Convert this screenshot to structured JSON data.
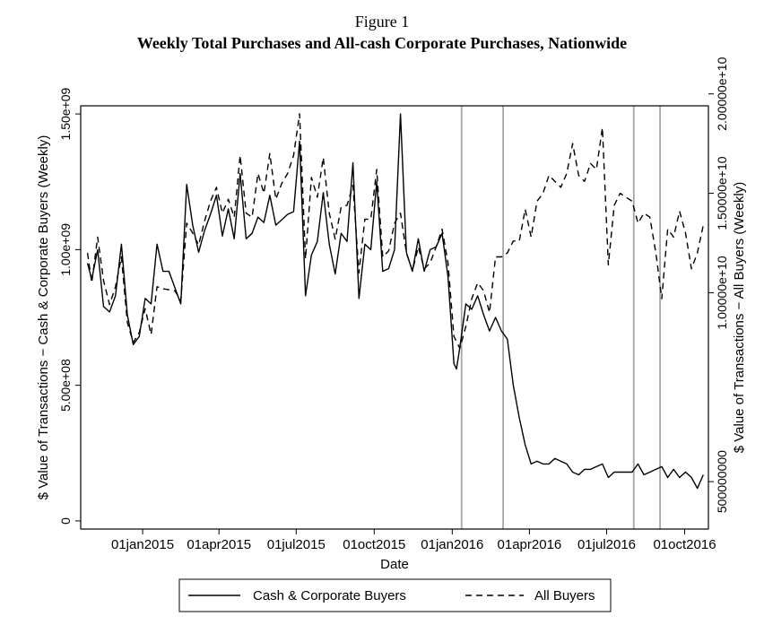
{
  "figure": {
    "label": "Figure 1",
    "title": "Weekly Total Purchases and All-cash Corporate Purchases, Nationwide"
  },
  "chart_data": {
    "type": "line",
    "xlabel": "Date",
    "ylabel_left": "$ Value of Transactions − Cash & Corporate Buyers (Weekly)",
    "ylabel_right": "$ Value of Transactions − All Buyers (Weekly)",
    "x_ticks": [
      "01jan2015",
      "01apr2015",
      "01jul2015",
      "01oct2015",
      "01jan2016",
      "01apr2016",
      "01jul2016",
      "01oct2016"
    ],
    "x_tick_dates": [
      "2015-01-01",
      "2015-04-01",
      "2015-07-01",
      "2015-10-01",
      "2016-01-01",
      "2016-04-01",
      "2016-07-01",
      "2016-10-01"
    ],
    "xlim": [
      "2014-10-20",
      "2016-10-29"
    ],
    "ylim_left": [
      -30000000,
      1530000000
    ],
    "ylim_right": [
      -1885714286,
      19400000000
    ],
    "y_ticks_left": [
      {
        "value": 0,
        "label": "0"
      },
      {
        "value": 500000000,
        "label": "5.00e+08"
      },
      {
        "value": 1000000000,
        "label": "1.00e+09"
      },
      {
        "value": 1500000000,
        "label": "1.50e+09"
      }
    ],
    "y_ticks_right": [
      {
        "value": 500000000,
        "label": "500000000"
      },
      {
        "value": 10000000000,
        "label": "1.00000e+10"
      },
      {
        "value": 15000000000,
        "label": "1.50000e+10"
      },
      {
        "value": 20000000000,
        "label": "2.00000e+10"
      }
    ],
    "vertical_lines": [
      "2016-01-12",
      "2016-03-01",
      "2016-08-02",
      "2016-09-02"
    ],
    "grid": false,
    "legend_position": "bottom",
    "series": [
      {
        "name": "Cash & Corporate Buyers",
        "axis": "left",
        "style": "solid",
        "points": [
          [
            "2014-10-28",
            950000000
          ],
          [
            "2014-11-02",
            890000000
          ],
          [
            "2014-11-09",
            1000000000
          ],
          [
            "2014-11-16",
            790000000
          ],
          [
            "2014-11-23",
            770000000
          ],
          [
            "2014-11-30",
            830000000
          ],
          [
            "2014-12-07",
            1020000000
          ],
          [
            "2014-12-14",
            760000000
          ],
          [
            "2014-12-21",
            650000000
          ],
          [
            "2014-12-28",
            680000000
          ],
          [
            "2015-01-04",
            820000000
          ],
          [
            "2015-01-11",
            800000000
          ],
          [
            "2015-01-18",
            1020000000
          ],
          [
            "2015-01-25",
            920000000
          ],
          [
            "2015-02-01",
            920000000
          ],
          [
            "2015-02-08",
            860000000
          ],
          [
            "2015-02-15",
            800000000
          ],
          [
            "2015-02-22",
            1240000000
          ],
          [
            "2015-03-01",
            1090000000
          ],
          [
            "2015-03-08",
            990000000
          ],
          [
            "2015-03-15",
            1070000000
          ],
          [
            "2015-03-22",
            1130000000
          ],
          [
            "2015-03-29",
            1200000000
          ],
          [
            "2015-04-05",
            1050000000
          ],
          [
            "2015-04-12",
            1150000000
          ],
          [
            "2015-04-19",
            1040000000
          ],
          [
            "2015-04-26",
            1280000000
          ],
          [
            "2015-05-03",
            1040000000
          ],
          [
            "2015-05-10",
            1060000000
          ],
          [
            "2015-05-17",
            1120000000
          ],
          [
            "2015-05-24",
            1100000000
          ],
          [
            "2015-05-31",
            1200000000
          ],
          [
            "2015-06-07",
            1090000000
          ],
          [
            "2015-06-14",
            1110000000
          ],
          [
            "2015-06-21",
            1130000000
          ],
          [
            "2015-06-28",
            1140000000
          ],
          [
            "2015-07-05",
            1400000000
          ],
          [
            "2015-07-12",
            830000000
          ],
          [
            "2015-07-19",
            980000000
          ],
          [
            "2015-07-26",
            1030000000
          ],
          [
            "2015-08-02",
            1210000000
          ],
          [
            "2015-08-09",
            1020000000
          ],
          [
            "2015-08-16",
            910000000
          ],
          [
            "2015-08-23",
            1060000000
          ],
          [
            "2015-08-30",
            1030000000
          ],
          [
            "2015-09-06",
            1320000000
          ],
          [
            "2015-09-13",
            820000000
          ],
          [
            "2015-09-20",
            1020000000
          ],
          [
            "2015-09-27",
            1000000000
          ],
          [
            "2015-10-04",
            1250000000
          ],
          [
            "2015-10-11",
            920000000
          ],
          [
            "2015-10-18",
            930000000
          ],
          [
            "2015-10-25",
            1000000000
          ],
          [
            "2015-11-01",
            1500000000
          ],
          [
            "2015-11-08",
            990000000
          ],
          [
            "2015-11-15",
            920000000
          ],
          [
            "2015-11-22",
            1040000000
          ],
          [
            "2015-11-29",
            920000000
          ],
          [
            "2015-12-06",
            1000000000
          ],
          [
            "2015-12-13",
            1010000000
          ],
          [
            "2015-12-20",
            1060000000
          ],
          [
            "2015-12-27",
            900000000
          ],
          [
            "2016-01-03",
            580000000
          ],
          [
            "2016-01-06",
            560000000
          ],
          [
            "2016-01-10",
            640000000
          ],
          [
            "2016-01-17",
            800000000
          ],
          [
            "2016-01-24",
            780000000
          ],
          [
            "2016-01-31",
            830000000
          ],
          [
            "2016-02-07",
            760000000
          ],
          [
            "2016-02-14",
            700000000
          ],
          [
            "2016-02-21",
            750000000
          ],
          [
            "2016-02-28",
            700000000
          ],
          [
            "2016-03-06",
            670000000
          ],
          [
            "2016-03-13",
            500000000
          ],
          [
            "2016-03-20",
            380000000
          ],
          [
            "2016-03-27",
            280000000
          ],
          [
            "2016-04-03",
            210000000
          ],
          [
            "2016-04-10",
            220000000
          ],
          [
            "2016-04-17",
            210000000
          ],
          [
            "2016-04-24",
            210000000
          ],
          [
            "2016-05-01",
            230000000
          ],
          [
            "2016-05-08",
            220000000
          ],
          [
            "2016-05-15",
            210000000
          ],
          [
            "2016-05-22",
            180000000
          ],
          [
            "2016-05-29",
            170000000
          ],
          [
            "2016-06-05",
            190000000
          ],
          [
            "2016-06-12",
            190000000
          ],
          [
            "2016-06-19",
            200000000
          ],
          [
            "2016-06-26",
            210000000
          ],
          [
            "2016-07-03",
            160000000
          ],
          [
            "2016-07-10",
            180000000
          ],
          [
            "2016-07-17",
            180000000
          ],
          [
            "2016-07-24",
            180000000
          ],
          [
            "2016-07-31",
            180000000
          ],
          [
            "2016-08-07",
            210000000
          ],
          [
            "2016-08-14",
            170000000
          ],
          [
            "2016-08-21",
            180000000
          ],
          [
            "2016-08-28",
            190000000
          ],
          [
            "2016-09-04",
            200000000
          ],
          [
            "2016-09-11",
            160000000
          ],
          [
            "2016-09-18",
            190000000
          ],
          [
            "2016-09-25",
            160000000
          ],
          [
            "2016-10-02",
            180000000
          ],
          [
            "2016-10-09",
            160000000
          ],
          [
            "2016-10-16",
            120000000
          ],
          [
            "2016-10-23",
            170000000
          ]
        ]
      },
      {
        "name": "All Buyers",
        "axis": "right",
        "style": "dashed",
        "points": [
          [
            "2014-10-28",
            12000000000
          ],
          [
            "2014-11-02",
            10500000000
          ],
          [
            "2014-11-09",
            12800000000
          ],
          [
            "2014-11-16",
            10600000000
          ],
          [
            "2014-11-23",
            9400000000
          ],
          [
            "2014-11-30",
            10300000000
          ],
          [
            "2014-12-07",
            11800000000
          ],
          [
            "2014-12-14",
            8500000000
          ],
          [
            "2014-12-21",
            7500000000
          ],
          [
            "2014-12-28",
            8000000000
          ],
          [
            "2015-01-04",
            9200000000
          ],
          [
            "2015-01-11",
            7900000000
          ],
          [
            "2015-01-18",
            10300000000
          ],
          [
            "2015-01-25",
            10200000000
          ],
          [
            "2015-02-08",
            10100000000
          ],
          [
            "2015-02-15",
            9600000000
          ],
          [
            "2015-02-22",
            13500000000
          ],
          [
            "2015-03-01",
            13000000000
          ],
          [
            "2015-03-08",
            12400000000
          ],
          [
            "2015-03-15",
            13600000000
          ],
          [
            "2015-03-22",
            14600000000
          ],
          [
            "2015-03-29",
            15300000000
          ],
          [
            "2015-04-05",
            14000000000
          ],
          [
            "2015-04-12",
            14700000000
          ],
          [
            "2015-04-19",
            13800000000
          ],
          [
            "2015-04-26",
            16900000000
          ],
          [
            "2015-05-03",
            14000000000
          ],
          [
            "2015-05-10",
            13800000000
          ],
          [
            "2015-05-17",
            16000000000
          ],
          [
            "2015-05-24",
            15000000000
          ],
          [
            "2015-05-31",
            17000000000
          ],
          [
            "2015-06-07",
            14700000000
          ],
          [
            "2015-06-14",
            15500000000
          ],
          [
            "2015-06-21",
            16000000000
          ],
          [
            "2015-06-28",
            16900000000
          ],
          [
            "2015-07-05",
            19000000000
          ],
          [
            "2015-07-12",
            11700000000
          ],
          [
            "2015-07-19",
            15800000000
          ],
          [
            "2015-07-26",
            14800000000
          ],
          [
            "2015-08-02",
            16800000000
          ],
          [
            "2015-08-09",
            14000000000
          ],
          [
            "2015-08-16",
            12700000000
          ],
          [
            "2015-08-23",
            14300000000
          ],
          [
            "2015-08-30",
            14400000000
          ],
          [
            "2015-09-06",
            15400000000
          ],
          [
            "2015-09-13",
            11000000000
          ],
          [
            "2015-09-20",
            13700000000
          ],
          [
            "2015-09-27",
            13700000000
          ],
          [
            "2015-10-04",
            16200000000
          ],
          [
            "2015-10-11",
            11800000000
          ],
          [
            "2015-10-18",
            12100000000
          ],
          [
            "2015-10-25",
            13500000000
          ],
          [
            "2015-11-01",
            14000000000
          ],
          [
            "2015-11-08",
            12000000000
          ],
          [
            "2015-11-15",
            11100000000
          ],
          [
            "2015-11-22",
            12300000000
          ],
          [
            "2015-11-29",
            11200000000
          ],
          [
            "2015-12-06",
            11500000000
          ],
          [
            "2015-12-13",
            12300000000
          ],
          [
            "2015-12-20",
            13200000000
          ],
          [
            "2015-12-27",
            11500000000
          ],
          [
            "2016-01-03",
            7800000000
          ],
          [
            "2016-01-10",
            7200000000
          ],
          [
            "2016-01-17",
            8300000000
          ],
          [
            "2016-01-24",
            9700000000
          ],
          [
            "2016-01-31",
            10500000000
          ],
          [
            "2016-02-07",
            10100000000
          ],
          [
            "2016-02-14",
            9000000000
          ],
          [
            "2016-02-21",
            11800000000
          ],
          [
            "2016-02-28",
            11800000000
          ],
          [
            "2016-03-06",
            12000000000
          ],
          [
            "2016-03-13",
            12600000000
          ],
          [
            "2016-03-20",
            12600000000
          ],
          [
            "2016-03-27",
            14200000000
          ],
          [
            "2016-04-03",
            12800000000
          ],
          [
            "2016-04-10",
            14600000000
          ],
          [
            "2016-04-17",
            15000000000
          ],
          [
            "2016-04-24",
            15900000000
          ],
          [
            "2016-05-01",
            15600000000
          ],
          [
            "2016-05-08",
            15300000000
          ],
          [
            "2016-05-15",
            16000000000
          ],
          [
            "2016-05-22",
            17500000000
          ],
          [
            "2016-05-29",
            15900000000
          ],
          [
            "2016-06-05",
            15600000000
          ],
          [
            "2016-06-12",
            16500000000
          ],
          [
            "2016-06-19",
            16200000000
          ],
          [
            "2016-06-26",
            18300000000
          ],
          [
            "2016-07-03",
            11400000000
          ],
          [
            "2016-07-10",
            14400000000
          ],
          [
            "2016-07-17",
            15000000000
          ],
          [
            "2016-07-24",
            14800000000
          ],
          [
            "2016-07-31",
            14600000000
          ],
          [
            "2016-08-07",
            13500000000
          ],
          [
            "2016-08-14",
            14000000000
          ],
          [
            "2016-08-21",
            13800000000
          ],
          [
            "2016-08-28",
            12000000000
          ],
          [
            "2016-09-04",
            9700000000
          ],
          [
            "2016-09-11",
            13200000000
          ],
          [
            "2016-09-18",
            12800000000
          ],
          [
            "2016-09-25",
            14100000000
          ],
          [
            "2016-10-02",
            13000000000
          ],
          [
            "2016-10-09",
            11200000000
          ],
          [
            "2016-10-16",
            12000000000
          ],
          [
            "2016-10-23",
            13400000000
          ]
        ]
      }
    ]
  },
  "legend": {
    "items": [
      {
        "label": "Cash & Corporate Buyers",
        "style": "solid"
      },
      {
        "label": "All Buyers",
        "style": "dashed"
      }
    ]
  },
  "colors": {
    "line": "#000000",
    "axis": "#000000",
    "vline": "#a6a6a6"
  }
}
